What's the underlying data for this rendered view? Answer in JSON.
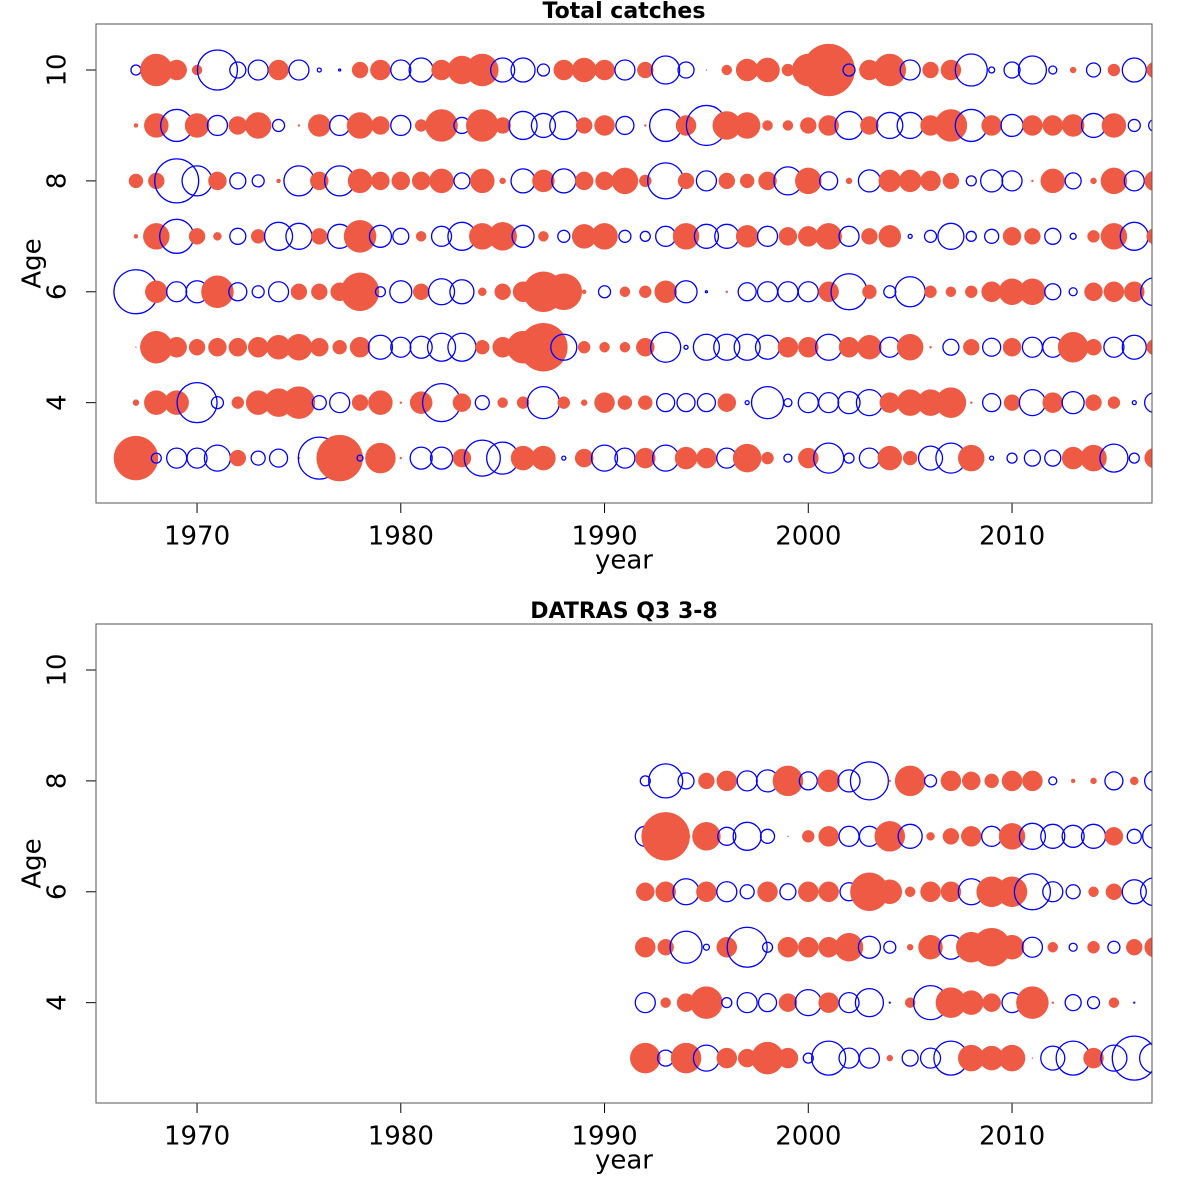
{
  "chart_data": [
    {
      "type": "bubble",
      "title": "Total catches",
      "xlabel": "year",
      "ylabel": "Age",
      "x": [
        1967,
        1968,
        1969,
        1970,
        1971,
        1972,
        1973,
        1974,
        1975,
        1976,
        1977,
        1978,
        1979,
        1980,
        1981,
        1982,
        1983,
        1984,
        1985,
        1986,
        1987,
        1988,
        1989,
        1990,
        1991,
        1992,
        1993,
        1994,
        1995,
        1996,
        1997,
        1998,
        1999,
        2000,
        2001,
        2002,
        2003,
        2004,
        2005,
        2006,
        2007,
        2008,
        2009,
        2010,
        2011,
        2012,
        2013,
        2014,
        2015,
        2016,
        2017
      ],
      "ages": [
        3,
        4,
        5,
        6,
        7,
        8,
        9,
        10
      ],
      "values": [
        [
          -2.2,
          0.5,
          1.0,
          1.0,
          1.3,
          -0.8,
          0.7,
          0.9,
          -0.1,
          2.1,
          -2.3,
          0.3,
          -1.5,
          -0.1,
          1.1,
          1.1,
          -0.9,
          1.8,
          1.6,
          -1.2,
          -1.2,
          0.2,
          -0.9,
          1.3,
          1.0,
          -1.0,
          1.3,
          -1.1,
          -1.0,
          1.0,
          -1.4,
          -0.6,
          0.4,
          -1.0,
          1.5,
          0.5,
          1.0,
          -1.2,
          -0.7,
          1.2,
          1.5,
          -1.3,
          0.2,
          0.5,
          0.8,
          0.8,
          -1.1,
          -1.3,
          1.4,
          0.5,
          -1.0
        ],
        [
          -0.3,
          -1.2,
          -1.2,
          2.0,
          0.6,
          -0.6,
          -1.2,
          -1.4,
          -1.6,
          0.7,
          1.0,
          -0.8,
          -1.2,
          -0.1,
          -1.1,
          1.9,
          -0.9,
          0.7,
          -0.5,
          -0.6,
          1.6,
          -0.6,
          -0.3,
          -1.0,
          -0.7,
          -0.7,
          0.9,
          0.9,
          0.9,
          -0.9,
          0.2,
          1.6,
          0.4,
          1.0,
          1.0,
          1.1,
          1.3,
          -1.0,
          -1.3,
          -1.3,
          -1.5,
          -0.1,
          0.9,
          -0.8,
          1.3,
          -1.0,
          1.1,
          -0.8,
          -0.6,
          0.2,
          1.0
        ],
        [
          -0.05,
          -1.6,
          -1.0,
          -0.8,
          -0.9,
          -0.9,
          -1.0,
          -1.2,
          -1.3,
          -0.9,
          -0.7,
          -1.0,
          1.2,
          1.0,
          1.1,
          1.4,
          1.4,
          -0.7,
          -1.0,
          -1.6,
          -2.4,
          1.3,
          -0.6,
          -0.5,
          -0.5,
          -0.9,
          1.5,
          0.2,
          1.3,
          1.3,
          1.3,
          1.2,
          -1.0,
          -1.0,
          1.3,
          -1.0,
          -1.2,
          1.0,
          -1.3,
          -0.1,
          0.8,
          -0.8,
          0.9,
          -0.9,
          1.0,
          1.0,
          -1.5,
          -0.8,
          1.0,
          1.2,
          -0.8
        ],
        [
          2.2,
          -1.1,
          1.0,
          1.1,
          -1.6,
          0.9,
          0.6,
          1.0,
          -0.8,
          -0.8,
          -0.9,
          -1.9,
          0.5,
          1.1,
          -0.8,
          1.3,
          1.2,
          -0.4,
          -0.8,
          -1.0,
          -2.0,
          -1.8,
          -0.2,
          0.6,
          -0.5,
          -0.6,
          -1.1,
          1.1,
          0.1,
          -0.1,
          0.9,
          1.0,
          1.0,
          1.0,
          -1.0,
          1.8,
          -0.7,
          0.6,
          1.5,
          -0.6,
          -0.5,
          -0.6,
          -1.0,
          -1.3,
          -1.3,
          0.8,
          0.4,
          -0.9,
          -1.0,
          -1.0,
          1.4
        ],
        [
          -0.2,
          -1.3,
          1.7,
          -0.8,
          -0.4,
          0.8,
          -0.7,
          1.4,
          1.3,
          -0.8,
          1.2,
          -1.6,
          1.1,
          0.8,
          -0.5,
          1.0,
          1.4,
          -1.3,
          -1.4,
          1.1,
          -0.5,
          0.6,
          -1.2,
          -1.3,
          0.6,
          0.5,
          1.0,
          -1.3,
          1.2,
          1.2,
          -1.1,
          1.0,
          -0.9,
          -1.0,
          -1.3,
          1.0,
          -0.8,
          -1.1,
          0.2,
          0.6,
          1.3,
          0.5,
          0.7,
          -0.9,
          -0.8,
          0.8,
          0.3,
          -0.6,
          -1.3,
          1.4,
          -0.8
        ],
        [
          -0.7,
          -0.8,
          2.2,
          1.5,
          -0.9,
          0.8,
          0.6,
          -0.2,
          1.5,
          -0.9,
          1.5,
          -1.2,
          -0.9,
          -0.9,
          -0.9,
          -1.2,
          0.8,
          -1.2,
          -0.3,
          1.2,
          -1.1,
          1.2,
          -0.9,
          -0.9,
          -1.3,
          -0.6,
          1.8,
          -0.8,
          1.0,
          -0.8,
          -0.7,
          -0.9,
          1.4,
          -1.3,
          0.9,
          -0.3,
          1.1,
          -1.1,
          -1.1,
          -1.0,
          -0.8,
          0.5,
          1.1,
          1.0,
          -0.1,
          -1.2,
          0.8,
          -0.3,
          -1.3,
          1.0,
          -1.0
        ],
        [
          -0.2,
          -1.2,
          1.6,
          -1.2,
          1.0,
          -0.9,
          -1.3,
          0.6,
          -0.1,
          -1.1,
          1.0,
          -1.3,
          -0.9,
          1.0,
          -0.6,
          -1.6,
          0.8,
          -1.6,
          -0.8,
          1.4,
          1.2,
          1.4,
          -0.8,
          -1.0,
          0.9,
          -0.1,
          1.6,
          -1.0,
          2.0,
          -1.4,
          -1.3,
          -0.5,
          -0.5,
          -0.8,
          -1.0,
          1.4,
          -0.9,
          1.3,
          1.3,
          -1.0,
          -1.6,
          1.6,
          -1.0,
          1.1,
          -1.0,
          -1.0,
          -1.1,
          1.2,
          -1.2,
          0.6,
          0.6
        ],
        [
          0.5,
          -1.6,
          -1.0,
          -0.5,
          2.0,
          0.8,
          1.0,
          -1.0,
          1.0,
          0.2,
          0.1,
          -0.8,
          -1.0,
          1.0,
          1.2,
          -1.0,
          -1.4,
          -1.6,
          1.2,
          1.2,
          0.6,
          -1.0,
          -1.2,
          -1.0,
          1.0,
          -0.8,
          1.4,
          0.8,
          -0.05,
          -0.5,
          -1.1,
          -1.2,
          -0.6,
          -1.6,
          -2.6,
          0.6,
          -1.0,
          -1.6,
          1.0,
          -0.8,
          -1.0,
          1.6,
          0.3,
          0.8,
          1.4,
          0.4,
          -0.3,
          0.7,
          -0.6,
          1.2,
          -0.8
        ]
      ],
      "xlim": [
        1965.04,
        2016.87
      ],
      "ylim": [
        2.19,
        10.83
      ],
      "xticks": [
        1970,
        1980,
        1990,
        2000,
        2010
      ],
      "yticks": [
        4,
        6,
        8,
        10
      ],
      "positive_color": "#0000ff",
      "negative_color": "#ee5a43"
    },
    {
      "type": "bubble",
      "title": "DATRAS Q3 3-8",
      "xlabel": "year",
      "ylabel": "Age",
      "x": [
        1992,
        1993,
        1994,
        1995,
        1996,
        1997,
        1998,
        1999,
        2000,
        2001,
        2002,
        2003,
        2004,
        2005,
        2006,
        2007,
        2008,
        2009,
        2010,
        2011,
        2012,
        2013,
        2014,
        2015,
        2016,
        2017
      ],
      "ages": [
        3,
        4,
        5,
        6,
        7,
        8
      ],
      "values": [
        [
          -1.5,
          0.8,
          -1.5,
          1.3,
          -1.0,
          -0.9,
          -1.6,
          -1.0,
          0.5,
          1.7,
          1.0,
          1.0,
          -0.3,
          0.8,
          1.0,
          1.7,
          -1.3,
          -1.2,
          -1.3,
          -0.05,
          1.2,
          1.7,
          -1.0,
          1.3,
          2.2,
          1.5
        ],
        [
          1.0,
          -0.5,
          -0.9,
          -1.6,
          0.5,
          1.0,
          0.9,
          -0.9,
          1.3,
          -1.0,
          1.0,
          1.4,
          0.05,
          -0.5,
          1.7,
          -1.5,
          -1.2,
          -0.9,
          1.0,
          -1.6,
          -0.1,
          0.8,
          0.6,
          -0.5,
          0.05,
          0.1
        ],
        [
          -1.0,
          -0.8,
          1.6,
          0.3,
          -1.0,
          2.0,
          0.5,
          -1.0,
          -1.0,
          -1.0,
          -1.4,
          1.1,
          0.6,
          -0.3,
          -1.2,
          1.2,
          -1.5,
          -1.9,
          -1.2,
          1.0,
          -0.5,
          0.4,
          -0.6,
          0.6,
          -0.8,
          -1.0
        ],
        [
          -0.9,
          -1.0,
          1.3,
          -1.0,
          1.0,
          0.7,
          -1.0,
          0.8,
          -1.0,
          -1.0,
          0.9,
          -1.9,
          -1.2,
          -0.5,
          -1.0,
          -1.0,
          1.3,
          -1.5,
          -1.5,
          1.8,
          1.0,
          0.7,
          -0.5,
          -0.8,
          1.2,
          1.4
        ],
        [
          1.0,
          -2.4,
          -0.4,
          -1.4,
          0.9,
          1.4,
          0.7,
          -0.05,
          -0.6,
          -1.0,
          1.0,
          1.0,
          -1.5,
          1.2,
          -0.4,
          -0.8,
          -1.0,
          1.0,
          -1.3,
          1.3,
          1.2,
          1.1,
          1.2,
          -0.9,
          0.7,
          1.2
        ],
        [
          0.5,
          1.7,
          0.8,
          -0.8,
          -1.0,
          1.0,
          1.1,
          -1.5,
          0.9,
          -1.1,
          1.1,
          1.9,
          -0.1,
          -1.5,
          0.6,
          -1.0,
          -0.9,
          -0.7,
          -1.0,
          -1.0,
          0.4,
          -0.2,
          -0.3,
          0.9,
          -0.4,
          1.0
        ]
      ],
      "xlim": [
        1965.04,
        2016.87
      ],
      "ylim": [
        2.19,
        10.83
      ],
      "xticks": [
        1970,
        1980,
        1990,
        2000,
        2010
      ],
      "yticks": [
        4,
        6,
        8,
        10
      ],
      "positive_color": "#0000ff",
      "negative_color": "#ee5a43"
    }
  ]
}
